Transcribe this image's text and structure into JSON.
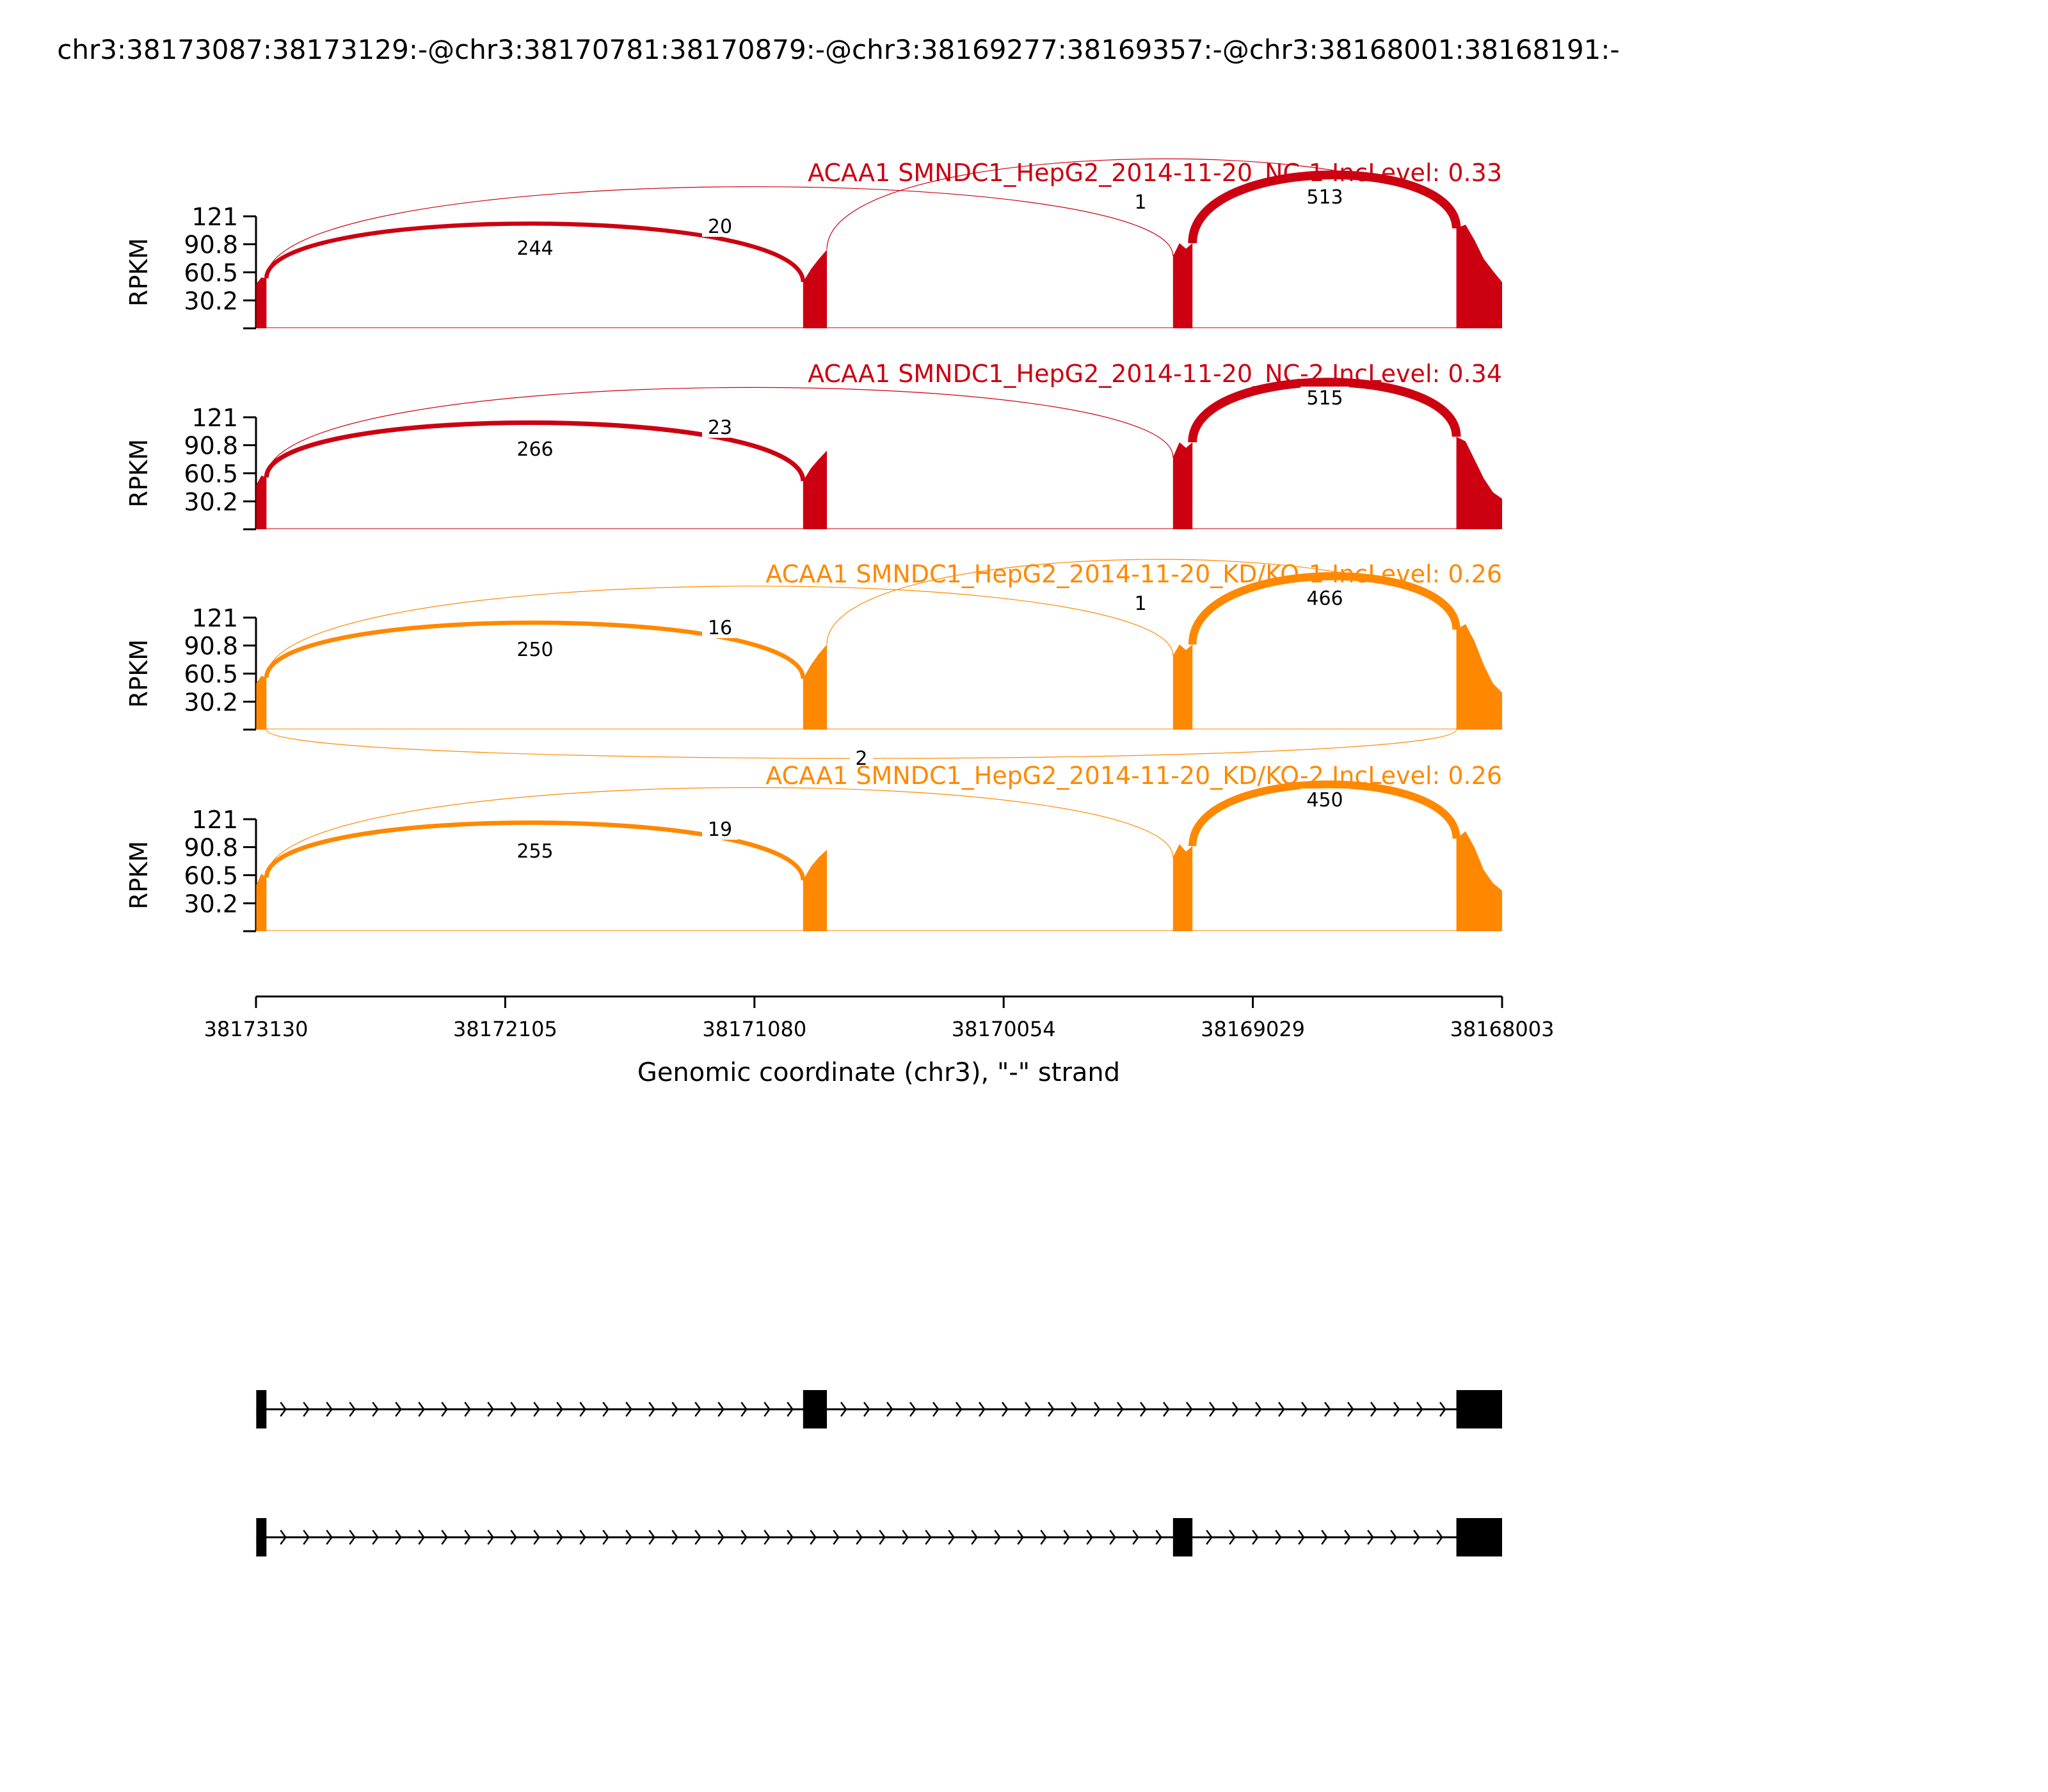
{
  "title": "chr3:38173087:38173129:-@chr3:38170781:38170879:-@chr3:38169277:38169357:-@chr3:38168001:38168191:-",
  "chart_data": {
    "type": "area",
    "ylabel": "RPKM",
    "xlabel": "Genomic coordinate (chr3), \"-\" strand",
    "xlim": [
      38173130,
      38168003
    ],
    "x_ticks": [
      "38173130",
      "38172105",
      "38171080",
      "38170054",
      "38169029",
      "38168003"
    ],
    "ylim": [
      0,
      121
    ],
    "y_ticks": [
      "121",
      "90.8",
      "60.5",
      "30.2"
    ],
    "colors": {
      "nc": "#cc0011",
      "kd": "#ff8800"
    },
    "exons": [
      {
        "start": 38173129,
        "end": 38173087
      },
      {
        "start": 38170879,
        "end": 38170781
      },
      {
        "start": 38169357,
        "end": 38169277
      },
      {
        "start": 38168191,
        "end": 38168003
      }
    ],
    "panels": [
      {
        "name": "ACAA1 SMNDC1_HepG2_2014-11-20_NC-1 IncLevel: 0.33",
        "color": "#cc0011",
        "coverage": [
          {
            "exon": 1,
            "values": [
              48,
              55,
              54
            ]
          },
          {
            "exon": 2,
            "values": [
              50,
              64,
              75,
              85
            ]
          },
          {
            "exon": 3,
            "values": [
              78,
              92,
              86,
              92
            ]
          },
          {
            "exon": 4,
            "values": [
              108,
              112,
              95,
              75,
              62,
              50
            ]
          }
        ],
        "junctions": [
          {
            "from": 38173087,
            "to": 38170879,
            "count": "244"
          },
          {
            "from": 38173087,
            "to": 38169357,
            "count": "20"
          },
          {
            "from": 38170781,
            "to": 38168191,
            "count": "1"
          },
          {
            "from": 38169277,
            "to": 38168191,
            "count": "513"
          }
        ]
      },
      {
        "name": "ACAA1 SMNDC1_HepG2_2014-11-20_NC-2 IncLevel: 0.34",
        "color": "#cc0011",
        "coverage": [
          {
            "exon": 1,
            "values": [
              48,
              58,
              56
            ]
          },
          {
            "exon": 2,
            "values": [
              52,
              66,
              76,
              85
            ]
          },
          {
            "exon": 3,
            "values": [
              78,
              94,
              88,
              94
            ]
          },
          {
            "exon": 4,
            "values": [
              100,
              95,
              75,
              55,
              40,
              33
            ]
          }
        ],
        "junctions": [
          {
            "from": 38173087,
            "to": 38170879,
            "count": "266"
          },
          {
            "from": 38173087,
            "to": 38169357,
            "count": "23"
          },
          {
            "from": 38169277,
            "to": 38168191,
            "count": "515"
          }
        ]
      },
      {
        "name": "ACAA1 SMNDC1_HepG2_2014-11-20_KD/KO-1 IncLevel: 0.26",
        "color": "#ff8800",
        "coverage": [
          {
            "exon": 1,
            "values": [
              50,
              58,
              56
            ]
          },
          {
            "exon": 2,
            "values": [
              55,
              70,
              82,
              92
            ]
          },
          {
            "exon": 3,
            "values": [
              80,
              92,
              86,
              92
            ]
          },
          {
            "exon": 4,
            "values": [
              108,
              114,
              95,
              70,
              50,
              40
            ]
          }
        ],
        "junctions": [
          {
            "from": 38173087,
            "to": 38170879,
            "count": "250"
          },
          {
            "from": 38173087,
            "to": 38169357,
            "count": "16"
          },
          {
            "from": 38170781,
            "to": 38168191,
            "count": "1"
          },
          {
            "from": 38169277,
            "to": 38168191,
            "count": "466"
          },
          {
            "from": 38173087,
            "to": 38168191,
            "count": "2",
            "below": true
          }
        ]
      },
      {
        "name": "ACAA1 SMNDC1_HepG2_2014-11-20_KD/KO-2 IncLevel: 0.26",
        "color": "#ff8800",
        "coverage": [
          {
            "exon": 1,
            "values": [
              50,
              62,
              58
            ]
          },
          {
            "exon": 2,
            "values": [
              55,
              70,
              80,
              88
            ]
          },
          {
            "exon": 3,
            "values": [
              80,
              94,
              86,
              92
            ]
          },
          {
            "exon": 4,
            "values": [
              100,
              108,
              90,
              66,
              52,
              44
            ]
          }
        ],
        "junctions": [
          {
            "from": 38173087,
            "to": 38170879,
            "count": "255"
          },
          {
            "from": 38173087,
            "to": 38169357,
            "count": "19"
          },
          {
            "from": 38169277,
            "to": 38168191,
            "count": "450"
          }
        ]
      }
    ],
    "isoforms": [
      {
        "exons": [
          1,
          2,
          4
        ]
      },
      {
        "exons": [
          1,
          3,
          4
        ]
      }
    ]
  }
}
